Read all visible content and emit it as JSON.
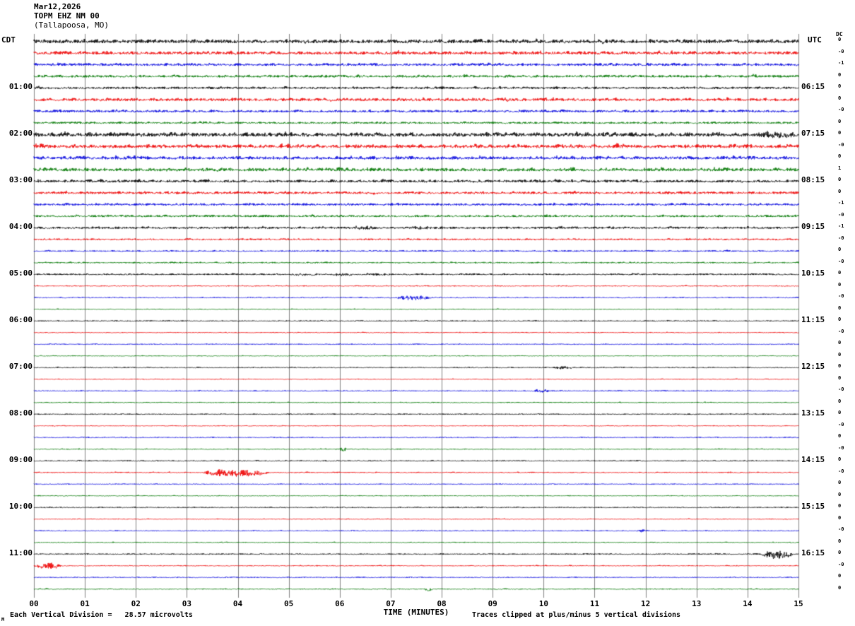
{
  "header": {
    "date": "Mar12,2026",
    "station": "TOPM EHZ NM 00",
    "location": "(Tallapoosa, MO)"
  },
  "axes": {
    "left_tz": "CDT",
    "right_tz": "UTC",
    "dc_header": "DC",
    "xlabel": "TIME (MINUTES)",
    "minute_labels": [
      "00",
      "01",
      "02",
      "03",
      "04",
      "05",
      "06",
      "07",
      "08",
      "09",
      "10",
      "11",
      "12",
      "13",
      "14",
      "15"
    ],
    "footer_left": "Each Vertical Division =   28.57 microvolts",
    "footer_right": "Traces clipped at plus/minus 5 vertical divisions",
    "corner_mark": "M"
  },
  "chart_data": {
    "type": "line",
    "subtype": "helicorder-seismogram",
    "title": "TOPM EHZ NM 00 (Tallapoosa, MO)",
    "xlabel": "TIME (MINUTES)",
    "x_range_minutes": [
      0,
      15
    ],
    "minutes_per_line": 15,
    "grid": "vertical-line-every-minute",
    "grid_color": "#808080",
    "colors_cycle": [
      "#000000",
      "#ee0000",
      "#0000dd",
      "#007700"
    ],
    "left_time_zone": "CDT",
    "right_time_zone": "UTC",
    "rows": [
      {
        "dc": "0",
        "amp": 3.2
      },
      {
        "dc": "-0",
        "amp": 2.8
      },
      {
        "dc": "-1",
        "amp": 2.4
      },
      {
        "dc": "0",
        "amp": 2.2
      },
      {
        "left": "01:00",
        "right": "06:15",
        "dc": "0",
        "amp": 2.0
      },
      {
        "dc": "0",
        "amp": 2.6
      },
      {
        "dc": "-0",
        "amp": 2.2
      },
      {
        "dc": "0",
        "amp": 1.8
      },
      {
        "left": "02:00",
        "right": "07:15",
        "dc": "0",
        "amp": 3.6,
        "events": [
          {
            "t": 14.2,
            "d": 0.8,
            "a": 2.5
          }
        ]
      },
      {
        "dc": "-0",
        "amp": 3.2
      },
      {
        "dc": "0",
        "amp": 2.8
      },
      {
        "dc": "1",
        "amp": 3.0
      },
      {
        "left": "03:00",
        "right": "08:15",
        "dc": "0",
        "amp": 2.4
      },
      {
        "dc": "0",
        "amp": 2.2
      },
      {
        "dc": "-1",
        "amp": 2.0
      },
      {
        "dc": "-0",
        "amp": 1.9
      },
      {
        "left": "04:00",
        "right": "09:15",
        "dc": "-1",
        "amp": 1.9,
        "events": [
          {
            "t": 6.2,
            "d": 0.5,
            "a": 1.5
          },
          {
            "t": 7.4,
            "d": 0.4,
            "a": 1.2
          }
        ]
      },
      {
        "dc": "-0",
        "amp": 1.5
      },
      {
        "dc": "0",
        "amp": 1.3
      },
      {
        "dc": "-0",
        "amp": 1.2
      },
      {
        "left": "05:00",
        "right": "10:15",
        "dc": "0",
        "amp": 1.4,
        "events": [
          {
            "t": 5.0,
            "d": 0.6,
            "a": 1.2
          },
          {
            "t": 5.8,
            "d": 0.5,
            "a": 1.5
          },
          {
            "t": 6.6,
            "d": 0.4,
            "a": 1.0
          }
        ]
      },
      {
        "dc": "0",
        "amp": 0.9
      },
      {
        "dc": "-0",
        "amp": 0.9,
        "events": [
          {
            "t": 7.1,
            "d": 0.7,
            "a": 3.5
          }
        ]
      },
      {
        "dc": "0",
        "amp": 0.8
      },
      {
        "left": "06:00",
        "right": "11:15",
        "dc": "0",
        "amp": 0.9
      },
      {
        "dc": "-0",
        "amp": 0.8
      },
      {
        "dc": "0",
        "amp": 0.8
      },
      {
        "dc": "0",
        "amp": 0.8
      },
      {
        "left": "07:00",
        "right": "12:15",
        "dc": "0",
        "amp": 0.9,
        "events": [
          {
            "t": 10.2,
            "d": 0.35,
            "a": 2.0
          }
        ]
      },
      {
        "dc": "0",
        "amp": 0.8
      },
      {
        "dc": "-0",
        "amp": 0.8,
        "events": [
          {
            "t": 9.8,
            "d": 0.3,
            "a": 2.2
          }
        ]
      },
      {
        "dc": "0",
        "amp": 0.8
      },
      {
        "left": "08:00",
        "right": "13:15",
        "dc": "0",
        "amp": 0.9
      },
      {
        "dc": "-0",
        "amp": 0.8
      },
      {
        "dc": "0",
        "amp": 0.8
      },
      {
        "dc": "-0",
        "amp": 0.9,
        "events": [
          {
            "t": 6.0,
            "d": 0.12,
            "a": 4.0
          }
        ]
      },
      {
        "left": "09:00",
        "right": "14:15",
        "dc": "0",
        "amp": 0.9
      },
      {
        "dc": "-0",
        "amp": 0.9,
        "events": [
          {
            "t": 3.3,
            "d": 1.3,
            "a": 6.0
          }
        ]
      },
      {
        "dc": "0",
        "amp": 0.8
      },
      {
        "dc": "0",
        "amp": 0.8
      },
      {
        "left": "10:00",
        "right": "15:15",
        "dc": "0",
        "amp": 0.9
      },
      {
        "dc": "0",
        "amp": 0.8
      },
      {
        "dc": "-0",
        "amp": 0.8,
        "events": [
          {
            "t": 11.8,
            "d": 0.25,
            "a": 1.8
          }
        ]
      },
      {
        "dc": "0",
        "amp": 0.8
      },
      {
        "left": "11:00",
        "right": "16:15",
        "dc": "0",
        "amp": 1.0,
        "events": [
          {
            "t": 14.25,
            "d": 0.65,
            "a": 7.0
          }
        ]
      },
      {
        "dc": "-0",
        "amp": 0.9,
        "events": [
          {
            "t": 0.0,
            "d": 0.55,
            "a": 4.5
          }
        ]
      },
      {
        "dc": "0",
        "amp": 0.8
      },
      {
        "dc": "0",
        "amp": 0.9,
        "events": [
          {
            "t": 7.65,
            "d": 0.18,
            "a": 3.0
          }
        ]
      }
    ]
  }
}
